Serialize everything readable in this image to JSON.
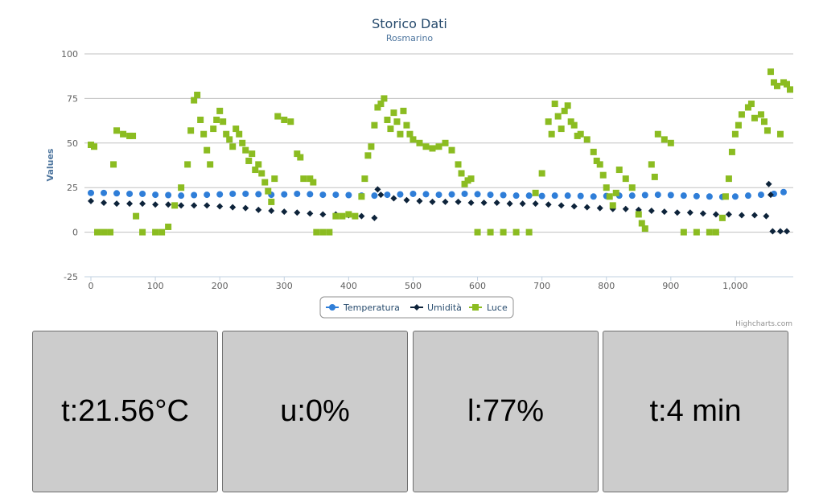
{
  "chart_data": {
    "type": "scatter",
    "title": "Storico Dati",
    "subtitle": "Rosmarino",
    "ylabel": "Values",
    "xlabel": "",
    "xlim": [
      -10,
      1090
    ],
    "ylim": [
      -25,
      100
    ],
    "x_ticks": [
      0,
      100,
      200,
      300,
      400,
      500,
      600,
      700,
      800,
      900,
      1000
    ],
    "x_tick_labels": [
      "0",
      "100",
      "200",
      "300",
      "400",
      "500",
      "600",
      "700",
      "800",
      "900",
      "1,000"
    ],
    "y_ticks": [
      -25,
      0,
      25,
      50,
      75,
      100
    ],
    "grid": true,
    "legend_position": "bottom-center",
    "credits": "Highcharts.com",
    "series": [
      {
        "name": "Temperatura",
        "color": "#2f7ed8",
        "marker": "circle",
        "points": [
          [
            0,
            22
          ],
          [
            20,
            22
          ],
          [
            40,
            21.8
          ],
          [
            60,
            21.5
          ],
          [
            80,
            21.5
          ],
          [
            100,
            21
          ],
          [
            120,
            20.8
          ],
          [
            140,
            20.5
          ],
          [
            160,
            20.8
          ],
          [
            180,
            21
          ],
          [
            200,
            21.2
          ],
          [
            220,
            21.5
          ],
          [
            240,
            21.5
          ],
          [
            260,
            21.3
          ],
          [
            280,
            21
          ],
          [
            300,
            21.2
          ],
          [
            320,
            21.5
          ],
          [
            340,
            21.3
          ],
          [
            360,
            21
          ],
          [
            380,
            21
          ],
          [
            400,
            20.8
          ],
          [
            420,
            20.5
          ],
          [
            440,
            20.5
          ],
          [
            460,
            21
          ],
          [
            480,
            21.2
          ],
          [
            500,
            21.5
          ],
          [
            520,
            21.3
          ],
          [
            540,
            21
          ],
          [
            560,
            21.2
          ],
          [
            580,
            21.5
          ],
          [
            600,
            21.3
          ],
          [
            620,
            21
          ],
          [
            640,
            20.8
          ],
          [
            660,
            20.5
          ],
          [
            680,
            20.5
          ],
          [
            700,
            20.3
          ],
          [
            720,
            20.5
          ],
          [
            740,
            20.5
          ],
          [
            760,
            20.3
          ],
          [
            780,
            20
          ],
          [
            800,
            20.3
          ],
          [
            820,
            20.5
          ],
          [
            840,
            20.5
          ],
          [
            860,
            20.8
          ],
          [
            880,
            21
          ],
          [
            900,
            20.8
          ],
          [
            920,
            20.5
          ],
          [
            940,
            20.2
          ],
          [
            960,
            20
          ],
          [
            980,
            19.8
          ],
          [
            1000,
            20
          ],
          [
            1020,
            20.5
          ],
          [
            1040,
            21
          ],
          [
            1060,
            21.5
          ],
          [
            1075,
            22.5
          ]
        ]
      },
      {
        "name": "Umidità",
        "color": "#0d233a",
        "marker": "diamond",
        "points": [
          [
            0,
            17.5
          ],
          [
            20,
            16.5
          ],
          [
            40,
            16
          ],
          [
            60,
            16
          ],
          [
            80,
            16
          ],
          [
            100,
            15.5
          ],
          [
            120,
            15.5
          ],
          [
            140,
            15
          ],
          [
            160,
            15
          ],
          [
            180,
            15
          ],
          [
            200,
            14.5
          ],
          [
            220,
            14
          ],
          [
            240,
            13.5
          ],
          [
            260,
            12.5
          ],
          [
            280,
            12
          ],
          [
            300,
            11.5
          ],
          [
            320,
            11
          ],
          [
            340,
            10.5
          ],
          [
            360,
            10
          ],
          [
            380,
            10
          ],
          [
            400,
            9.5
          ],
          [
            420,
            9
          ],
          [
            440,
            8
          ],
          [
            445,
            24
          ],
          [
            450,
            21
          ],
          [
            470,
            19
          ],
          [
            490,
            18
          ],
          [
            510,
            17.5
          ],
          [
            530,
            17
          ],
          [
            550,
            17
          ],
          [
            570,
            17
          ],
          [
            590,
            16.5
          ],
          [
            610,
            16.5
          ],
          [
            630,
            16.5
          ],
          [
            650,
            16
          ],
          [
            670,
            16
          ],
          [
            690,
            16
          ],
          [
            710,
            15.5
          ],
          [
            730,
            15
          ],
          [
            750,
            14.5
          ],
          [
            770,
            14
          ],
          [
            790,
            13.5
          ],
          [
            810,
            13
          ],
          [
            830,
            13
          ],
          [
            850,
            12.5
          ],
          [
            870,
            12
          ],
          [
            890,
            11.5
          ],
          [
            910,
            11
          ],
          [
            930,
            11
          ],
          [
            950,
            10.5
          ],
          [
            970,
            10
          ],
          [
            990,
            10
          ],
          [
            1010,
            9.5
          ],
          [
            1030,
            9.5
          ],
          [
            1048,
            9
          ],
          [
            1052,
            27
          ],
          [
            1055,
            21
          ],
          [
            1058,
            0.5
          ],
          [
            1070,
            0.5
          ],
          [
            1080,
            0.5
          ]
        ]
      },
      {
        "name": "Luce",
        "color": "#8bbc21",
        "marker": "square",
        "points": [
          [
            0,
            49
          ],
          [
            5,
            48
          ],
          [
            10,
            0
          ],
          [
            20,
            0
          ],
          [
            30,
            0
          ],
          [
            35,
            38
          ],
          [
            40,
            57
          ],
          [
            50,
            55
          ],
          [
            60,
            54
          ],
          [
            65,
            54
          ],
          [
            70,
            9
          ],
          [
            80,
            0
          ],
          [
            100,
            0
          ],
          [
            110,
            0
          ],
          [
            120,
            3
          ],
          [
            130,
            15
          ],
          [
            140,
            25
          ],
          [
            150,
            38
          ],
          [
            155,
            57
          ],
          [
            160,
            74
          ],
          [
            165,
            77
          ],
          [
            170,
            63
          ],
          [
            175,
            55
          ],
          [
            180,
            46
          ],
          [
            185,
            38
          ],
          [
            190,
            58
          ],
          [
            195,
            63
          ],
          [
            200,
            68
          ],
          [
            205,
            62
          ],
          [
            210,
            55
          ],
          [
            215,
            52
          ],
          [
            220,
            48
          ],
          [
            225,
            58
          ],
          [
            230,
            55
          ],
          [
            235,
            50
          ],
          [
            240,
            46
          ],
          [
            245,
            40
          ],
          [
            250,
            44
          ],
          [
            255,
            35
          ],
          [
            260,
            38
          ],
          [
            265,
            33
          ],
          [
            270,
            28
          ],
          [
            275,
            23
          ],
          [
            280,
            17
          ],
          [
            285,
            30
          ],
          [
            290,
            65
          ],
          [
            300,
            63
          ],
          [
            310,
            62
          ],
          [
            320,
            44
          ],
          [
            325,
            42
          ],
          [
            330,
            30
          ],
          [
            340,
            30
          ],
          [
            345,
            28
          ],
          [
            350,
            0
          ],
          [
            360,
            0
          ],
          [
            370,
            0
          ],
          [
            380,
            9
          ],
          [
            390,
            9
          ],
          [
            400,
            10
          ],
          [
            410,
            9
          ],
          [
            420,
            20
          ],
          [
            425,
            30
          ],
          [
            430,
            43
          ],
          [
            435,
            48
          ],
          [
            440,
            60
          ],
          [
            445,
            70
          ],
          [
            450,
            72
          ],
          [
            455,
            75
          ],
          [
            460,
            63
          ],
          [
            465,
            58
          ],
          [
            470,
            67
          ],
          [
            475,
            62
          ],
          [
            480,
            55
          ],
          [
            485,
            68
          ],
          [
            490,
            60
          ],
          [
            495,
            55
          ],
          [
            500,
            52
          ],
          [
            510,
            50
          ],
          [
            520,
            48
          ],
          [
            530,
            47
          ],
          [
            540,
            48
          ],
          [
            550,
            50
          ],
          [
            560,
            46
          ],
          [
            570,
            38
          ],
          [
            575,
            33
          ],
          [
            580,
            27
          ],
          [
            585,
            29
          ],
          [
            590,
            30
          ],
          [
            600,
            0
          ],
          [
            620,
            0
          ],
          [
            640,
            0
          ],
          [
            660,
            0
          ],
          [
            680,
            0
          ],
          [
            690,
            22
          ],
          [
            700,
            33
          ],
          [
            710,
            62
          ],
          [
            715,
            55
          ],
          [
            720,
            72
          ],
          [
            725,
            65
          ],
          [
            730,
            58
          ],
          [
            735,
            68
          ],
          [
            740,
            71
          ],
          [
            745,
            62
          ],
          [
            750,
            60
          ],
          [
            755,
            54
          ],
          [
            760,
            55
          ],
          [
            770,
            52
          ],
          [
            780,
            45
          ],
          [
            785,
            40
          ],
          [
            790,
            38
          ],
          [
            795,
            32
          ],
          [
            800,
            25
          ],
          [
            805,
            20
          ],
          [
            810,
            15
          ],
          [
            815,
            22
          ],
          [
            820,
            35
          ],
          [
            830,
            30
          ],
          [
            840,
            25
          ],
          [
            850,
            10
          ],
          [
            855,
            5
          ],
          [
            860,
            2
          ],
          [
            870,
            38
          ],
          [
            875,
            31
          ],
          [
            880,
            55
          ],
          [
            890,
            52
          ],
          [
            900,
            50
          ],
          [
            920,
            0
          ],
          [
            940,
            0
          ],
          [
            960,
            0
          ],
          [
            970,
            0
          ],
          [
            980,
            8
          ],
          [
            985,
            20
          ],
          [
            990,
            30
          ],
          [
            995,
            45
          ],
          [
            1000,
            55
          ],
          [
            1005,
            60
          ],
          [
            1010,
            66
          ],
          [
            1020,
            70
          ],
          [
            1025,
            72
          ],
          [
            1030,
            64
          ],
          [
            1040,
            66
          ],
          [
            1045,
            62
          ],
          [
            1050,
            57
          ],
          [
            1055,
            90
          ],
          [
            1060,
            84
          ],
          [
            1065,
            82
          ],
          [
            1070,
            55
          ],
          [
            1075,
            84
          ],
          [
            1080,
            83
          ],
          [
            1085,
            80
          ]
        ]
      }
    ]
  },
  "tiles": {
    "temperature": "t:21.56°C",
    "humidity": "u:0%",
    "light": "l:77%",
    "time": "t:4 min"
  }
}
